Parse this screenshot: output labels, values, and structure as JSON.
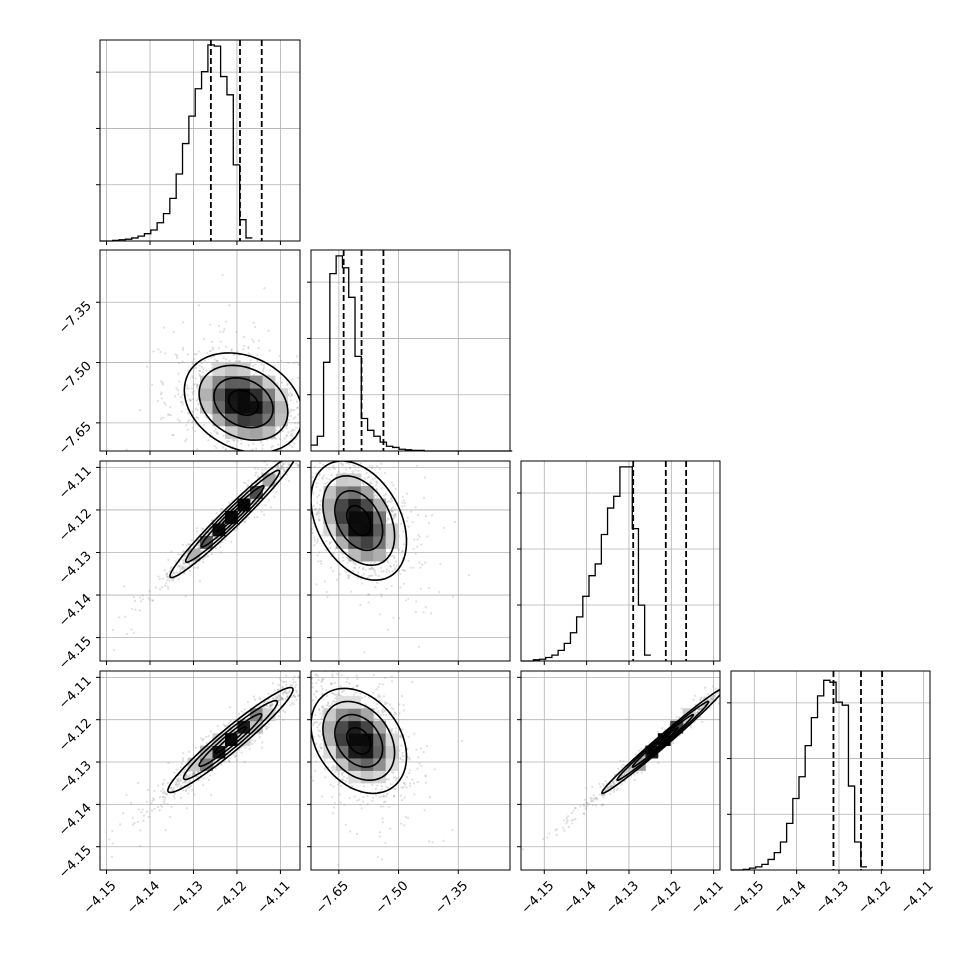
{
  "chart_data": {
    "type": "corner",
    "n_params": 4,
    "colors": {
      "ink": "#000000",
      "grid": "#b0b0b0",
      "scatter": "#9a9a9a"
    },
    "params": [
      {
        "range": [
          -4.1515,
          -4.1055
        ],
        "ticks": [
          -4.15,
          -4.14,
          -4.13,
          -4.12,
          -4.11
        ],
        "tick_labels": [
          "−4.15",
          "−4.14",
          "−4.13",
          "−4.12",
          "−4.11"
        ]
      },
      {
        "range": [
          -7.72,
          -7.22
        ],
        "ticks": [
          -7.65,
          -7.5,
          -7.35
        ],
        "tick_labels": [
          "−7.65",
          "−7.50",
          "−7.35"
        ]
      },
      {
        "range": [
          -4.1555,
          -4.1085
        ],
        "ticks": [
          -4.15,
          -4.14,
          -4.13,
          -4.12,
          -4.11
        ],
        "tick_labels": [
          "−4.15",
          "−4.14",
          "−4.13",
          "−4.12",
          "−4.11"
        ]
      },
      {
        "range": [
          -4.1555,
          -4.1085
        ],
        "ticks": [
          -4.15,
          -4.14,
          -4.13,
          -4.12,
          -4.11
        ],
        "tick_labels": [
          "−4.15",
          "−4.14",
          "−4.13",
          "−4.12",
          "−4.11"
        ]
      }
    ],
    "marginals": [
      {
        "param": 0,
        "bin_start": -4.1515,
        "bin_width": 0.00146,
        "counts": [
          0,
          0,
          1,
          2,
          3,
          5,
          8,
          12,
          18,
          30,
          45,
          70,
          110,
          160,
          205,
          250,
          278,
          322,
          320,
          270,
          240,
          125,
          35,
          5
        ],
        "ymax": 330,
        "quantiles": [
          -4.126,
          -4.1193,
          -4.1143
        ]
      },
      {
        "param": 1,
        "bin_start": -7.72,
        "bin_width": 0.0158,
        "counts": [
          10,
          25,
          150,
          300,
          330,
          310,
          260,
          160,
          55,
          35,
          25,
          15,
          8,
          6,
          3,
          2,
          1,
          1,
          0,
          0,
          0,
          0,
          0,
          0,
          0,
          0,
          0,
          0,
          0,
          0,
          0,
          0
        ],
        "ymax": 340,
        "quantiles": [
          -7.638,
          -7.593,
          -7.538
        ]
      },
      {
        "param": 2,
        "bin_start": -4.1555,
        "bin_width": 0.00146,
        "counts": [
          0,
          0,
          2,
          3,
          6,
          10,
          18,
          30,
          48,
          75,
          110,
          145,
          165,
          215,
          260,
          280,
          330,
          330,
          225,
          95,
          10
        ],
        "ymax": 340,
        "quantiles": [
          -4.129,
          -4.1213,
          -4.1165
        ]
      },
      {
        "param": 3,
        "bin_start": -4.1555,
        "bin_width": 0.00146,
        "counts": [
          0,
          0,
          1,
          3,
          5,
          9,
          17,
          28,
          45,
          75,
          115,
          150,
          200,
          245,
          280,
          305,
          302,
          270,
          265,
          135,
          45,
          5
        ],
        "ymax": 320,
        "quantiles": [
          -4.1313,
          -4.1248,
          -4.1198
        ]
      }
    ],
    "pairs": [
      {
        "x": 0,
        "y": 1,
        "center": [
          -4.1185,
          -7.6
        ],
        "sd": [
          0.0068,
          0.062
        ],
        "corr": -0.25
      },
      {
        "x": 0,
        "y": 2,
        "center": [
          -4.121,
          -4.1215
        ],
        "sd": [
          0.0072,
          0.0072
        ],
        "corr": 0.975
      },
      {
        "x": 0,
        "y": 3,
        "center": [
          -4.1215,
          -4.1248
        ],
        "sd": [
          0.0072,
          0.0062
        ],
        "corr": 0.96
      },
      {
        "x": 1,
        "y": 2,
        "center": [
          -7.6,
          -4.1225
        ],
        "sd": [
          0.06,
          0.007
        ],
        "corr": -0.35
      },
      {
        "x": 1,
        "y": 3,
        "center": [
          -7.6,
          -4.125
        ],
        "sd": [
          0.06,
          0.0062
        ],
        "corr": -0.3
      },
      {
        "x": 2,
        "y": 3,
        "center": [
          -4.122,
          -4.125
        ],
        "sd": [
          0.0072,
          0.0062
        ],
        "corr": 0.99
      }
    ],
    "contour_levels_sigma": [
      0.5,
      1.0,
      1.5,
      2.0
    ],
    "grid": true,
    "legend": "none"
  }
}
